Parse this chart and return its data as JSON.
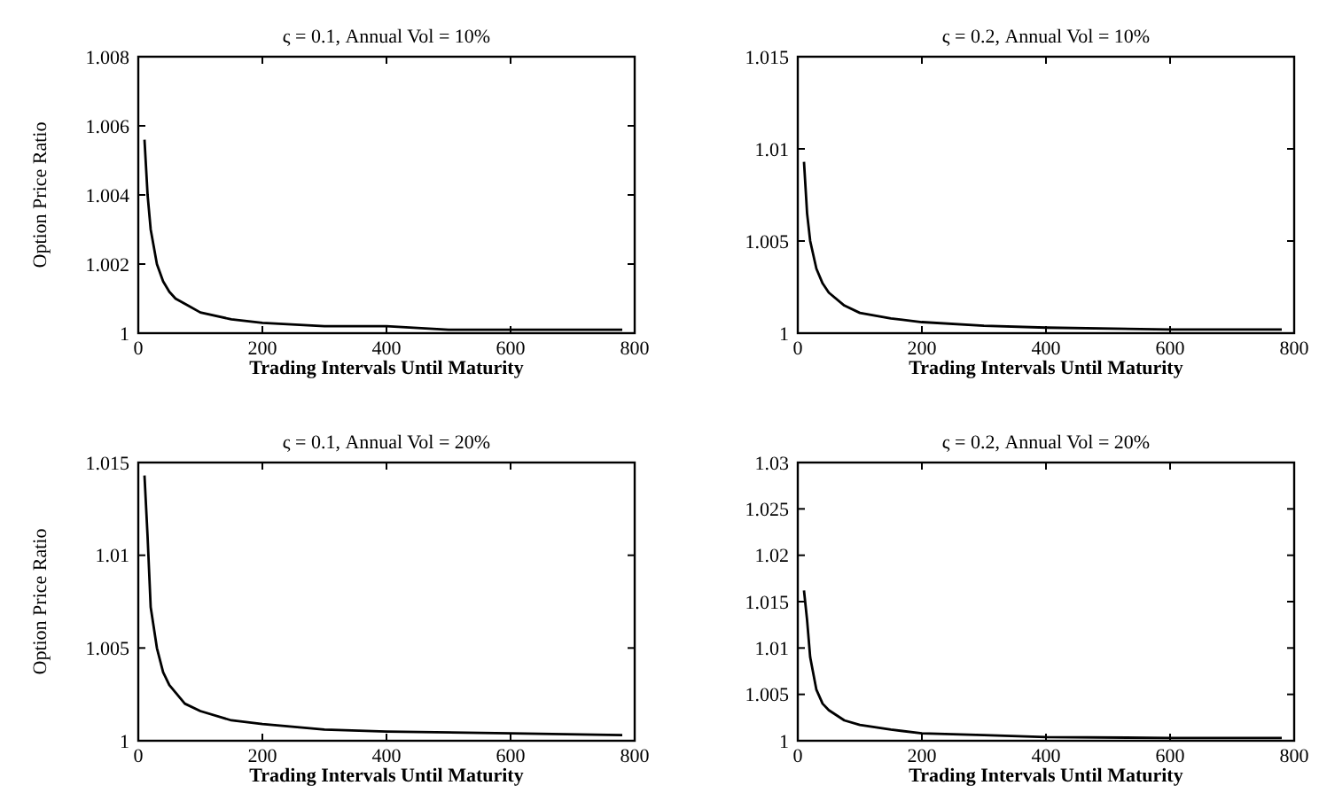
{
  "chart_data": [
    {
      "type": "line",
      "title": "ς = 0.1, Annual Vol = 10%",
      "xlabel": "Trading Intervals Until Maturity",
      "ylabel": "Option Price Ratio",
      "xlim": [
        0,
        800
      ],
      "xticks": [
        0,
        200,
        400,
        600,
        800
      ],
      "ylim": [
        1,
        1.008
      ],
      "yticks": [
        1,
        1.002,
        1.004,
        1.006,
        1.008
      ],
      "series": [
        {
          "color": "#000000",
          "x": [
            10,
            15,
            20,
            30,
            40,
            50,
            60,
            80,
            100,
            150,
            200,
            300,
            400,
            500,
            600,
            780
          ],
          "values": [
            1.0056,
            1.004,
            1.003,
            1.002,
            1.0015,
            1.0012,
            1.001,
            1.0008,
            1.0006,
            1.0004,
            1.0003,
            1.0002,
            1.0002,
            1.0001,
            1.0001,
            1.0001
          ]
        }
      ]
    },
    {
      "type": "line",
      "title": "ς = 0.2, Annual Vol = 10%",
      "xlabel": "Trading Intervals Until Maturity",
      "xlim": [
        0,
        800
      ],
      "xticks": [
        0,
        200,
        400,
        600,
        800
      ],
      "ylim": [
        1,
        1.015
      ],
      "yticks": [
        1,
        1.005,
        1.01,
        1.015
      ],
      "series": [
        {
          "color": "#000000",
          "x": [
            10,
            15,
            20,
            30,
            40,
            50,
            75,
            100,
            150,
            200,
            300,
            400,
            600,
            780
          ],
          "values": [
            1.0093,
            1.0065,
            1.005,
            1.0035,
            1.0027,
            1.0022,
            1.0015,
            1.0011,
            1.0008,
            1.0006,
            1.0004,
            1.0003,
            1.0002,
            1.0002
          ]
        }
      ]
    },
    {
      "type": "line",
      "title": "ς = 0.1, Annual Vol = 20%",
      "xlabel": "Trading Intervals Until Maturity",
      "ylabel": "Option Price Ratio",
      "xlim": [
        0,
        800
      ],
      "xticks": [
        0,
        200,
        400,
        600,
        800
      ],
      "ylim": [
        1,
        1.015
      ],
      "yticks": [
        1,
        1.005,
        1.01,
        1.015
      ],
      "series": [
        {
          "color": "#000000",
          "x": [
            10,
            15,
            20,
            30,
            40,
            50,
            75,
            100,
            150,
            200,
            300,
            400,
            600,
            780
          ],
          "values": [
            1.0143,
            1.011,
            1.0072,
            1.005,
            1.0037,
            1.003,
            1.002,
            1.0016,
            1.0011,
            1.0009,
            1.0006,
            1.0005,
            1.0004,
            1.0003
          ]
        }
      ]
    },
    {
      "type": "line",
      "title": "ς = 0.2, Annual Vol = 20%",
      "xlabel": "Trading Intervals Until Maturity",
      "xlim": [
        0,
        800
      ],
      "xticks": [
        0,
        200,
        400,
        600,
        800
      ],
      "ylim": [
        1,
        1.03
      ],
      "yticks": [
        1,
        1.005,
        1.01,
        1.015,
        1.02,
        1.025,
        1.03
      ],
      "series": [
        {
          "color": "#000000",
          "x": [
            10,
            15,
            20,
            30,
            40,
            50,
            75,
            100,
            150,
            200,
            300,
            400,
            600,
            780
          ],
          "values": [
            1.0162,
            1.013,
            1.009,
            1.0055,
            1.004,
            1.0033,
            1.0022,
            1.0017,
            1.0012,
            1.0008,
            1.0006,
            1.0004,
            1.0003,
            1.0003
          ]
        }
      ]
    }
  ]
}
